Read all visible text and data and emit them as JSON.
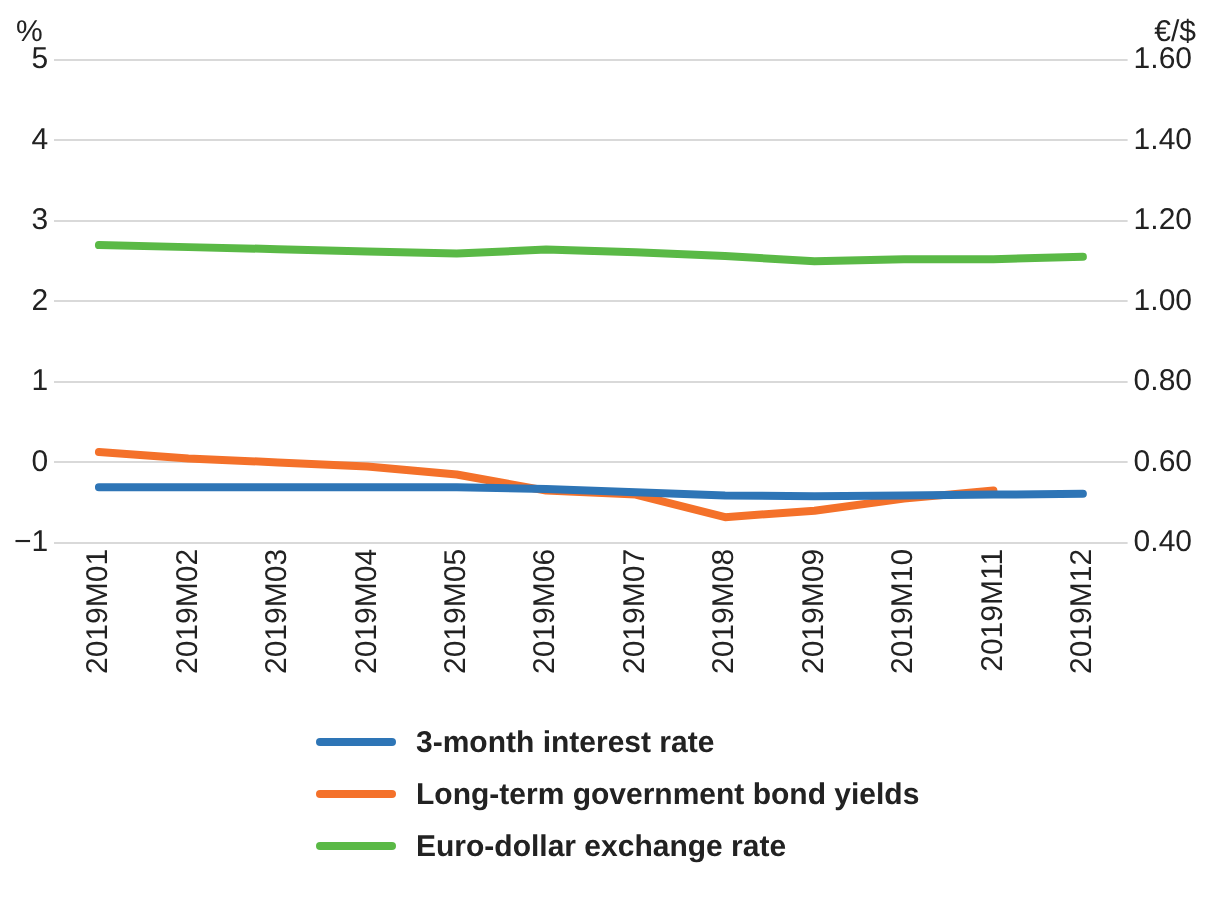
{
  "chart_data": {
    "type": "line",
    "ylabel": "%",
    "y2label": "€/$",
    "categories": [
      "2019M01",
      "2019M02",
      "2019M03",
      "2019M04",
      "2019M05",
      "2019M06",
      "2019M07",
      "2019M08",
      "2019M09",
      "2019M10",
      "2019M11",
      "2019M12"
    ],
    "series": [
      {
        "name": "3-month interest rate",
        "color": "#2e75b6",
        "values": [
          -0.31,
          -0.31,
          -0.31,
          -0.31,
          -0.31,
          -0.33,
          -0.37,
          -0.41,
          -0.42,
          -0.41,
          -0.4,
          -0.39
        ]
      },
      {
        "name": "Long-term government bond yields",
        "color": "#f4712a",
        "values": [
          0.13,
          0.05,
          0.0,
          -0.05,
          -0.15,
          -0.35,
          -0.4,
          -0.68,
          -0.6,
          -0.45,
          -0.35,
          null
        ]
      },
      {
        "name": "Euro-dollar exchange rate",
        "color": "#5ab946",
        "axis": "y2",
        "values": [
          1.14,
          1.135,
          1.13,
          1.124,
          1.119,
          1.129,
          1.122,
          1.113,
          1.1,
          1.105,
          1.105,
          1.111
        ]
      }
    ],
    "ylim": [
      -1,
      5
    ],
    "yticks": [
      -1,
      0,
      1,
      2,
      3,
      4,
      5
    ],
    "y2lim": [
      0.4,
      1.6
    ],
    "y2ticks": [
      {
        "value": 0.4,
        "label": "0.40"
      },
      {
        "value": 0.6,
        "label": "0.60"
      },
      {
        "value": 0.8,
        "label": "0.80"
      },
      {
        "value": 1.0,
        "label": "1.00"
      },
      {
        "value": 1.2,
        "label": "1.20"
      },
      {
        "value": 1.4,
        "label": "1.40"
      },
      {
        "value": 1.6,
        "label": "1.60"
      }
    ],
    "grid": "y",
    "legend": "bottom",
    "line_style": "solid",
    "marker": "none"
  }
}
